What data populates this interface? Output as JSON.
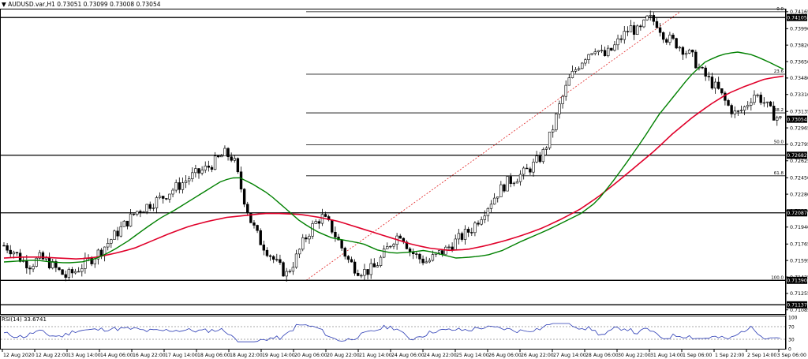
{
  "header": {
    "arrow_glyph": "▼",
    "symbol": "AUDUSD.var,H1",
    "ohlc": "0.73051 0.73099 0.73008 0.73054"
  },
  "rsi": {
    "label": "RSI(14) 33.6741",
    "period": 14,
    "value": 33.6741,
    "scale_labels": [
      "100",
      "70",
      "30",
      "0"
    ],
    "overbought": 70,
    "oversold": 30
  },
  "price_axis": {
    "min": 0.7105,
    "max": 0.7418,
    "ticks": [
      "0.74165",
      "0.73990",
      "0.73820",
      "0.73650",
      "0.73480",
      "0.73310",
      "0.73135",
      "0.72965",
      "0.72795",
      "0.72625",
      "0.72450",
      "0.72280",
      "0.72110",
      "0.71940",
      "0.71765",
      "0.71595",
      "0.71425",
      "0.71255",
      "0.71085"
    ],
    "current_price": "0.73054"
  },
  "horizontal_levels": [
    {
      "price": 0.74105,
      "label": "0.74105"
    },
    {
      "price": 0.72682,
      "label": "0.72682"
    },
    {
      "price": 0.72087,
      "label": "0.72087"
    },
    {
      "price": 0.7139,
      "label": "0.71390"
    },
    {
      "price": 0.71137,
      "label": "0.71137"
    }
  ],
  "fibonacci": {
    "levels": [
      {
        "ratio": "0.0",
        "price": 0.74165
      },
      {
        "ratio": "23.6",
        "price": 0.7352
      },
      {
        "ratio": "38.2",
        "price": 0.7312
      },
      {
        "ratio": "50.0",
        "price": 0.7279
      },
      {
        "ratio": "61.8",
        "price": 0.7247
      },
      {
        "ratio": "100.0",
        "price": 0.7139
      }
    ]
  },
  "time_axis": {
    "labels": [
      "12 Aug 2020",
      "12 Aug 22:00",
      "13 Aug 14:00",
      "14 Aug 06:00",
      "16 Aug 22:00",
      "17 Aug 14:00",
      "18 Aug 06:00",
      "18 Aug 22:00",
      "19 Aug 14:00",
      "20 Aug 06:00",
      "20 Aug 22:00",
      "21 Aug 14:00",
      "24 Aug 06:00",
      "24 Aug 22:00",
      "25 Aug 14:00",
      "26 Aug 06:00",
      "26 Aug 22:00",
      "27 Aug 14:00",
      "28 Aug 06:00",
      "30 Aug 22:00",
      "31 Aug 14:00",
      "1 Sep 06:00",
      "1 Sep 22:00",
      "2 Sep 14:00",
      "3 Sep 06:00"
    ]
  },
  "colors": {
    "background": "#ffffff",
    "candle_bull": "#ffffff",
    "candle_bear": "#000000",
    "ma_fast": "#008000",
    "ma_slow": "#e0002a",
    "rsi_line": "#2a3bb5",
    "fib_line": "#e02020",
    "level_line": "#000000"
  },
  "chart_data": {
    "type": "candlestick",
    "close_path": [
      0.7175,
      0.717,
      0.716,
      0.7155,
      0.7162,
      0.7158,
      0.715,
      0.7143,
      0.7148,
      0.7155,
      0.7162,
      0.717,
      0.718,
      0.719,
      0.72,
      0.721,
      0.7215,
      0.722,
      0.7225,
      0.7232,
      0.7238,
      0.7245,
      0.725,
      0.7255,
      0.7262,
      0.727,
      0.7265,
      0.723,
      0.72,
      0.718,
      0.7168,
      0.7155,
      0.7145,
      0.716,
      0.718,
      0.7195,
      0.7205,
      0.7195,
      0.7178,
      0.716,
      0.715,
      0.7148,
      0.7152,
      0.7165,
      0.718,
      0.7188,
      0.717,
      0.7162,
      0.7158,
      0.7165,
      0.717,
      0.7178,
      0.7185,
      0.7192,
      0.7205,
      0.7218,
      0.723,
      0.724,
      0.7245,
      0.725,
      0.7258,
      0.7268,
      0.729,
      0.732,
      0.7345,
      0.736,
      0.7372,
      0.738,
      0.737,
      0.7378,
      0.739,
      0.74,
      0.7395,
      0.741,
      0.7405,
      0.739,
      0.7385,
      0.7378,
      0.737,
      0.7355,
      0.7345,
      0.7335,
      0.732,
      0.731,
      0.7318,
      0.7332,
      0.7325,
      0.7312,
      0.7305
    ],
    "ma_fast_path": [
      0.7158,
      0.7159,
      0.716,
      0.7158,
      0.7157,
      0.7158,
      0.7162,
      0.717,
      0.718,
      0.7192,
      0.7203,
      0.7212,
      0.7222,
      0.7232,
      0.7242,
      0.7246,
      0.7238,
      0.7228,
      0.7214,
      0.72,
      0.719,
      0.7183,
      0.718,
      0.7177,
      0.717,
      0.7167,
      0.7168,
      0.717,
      0.7166,
      0.7162,
      0.7163,
      0.7165,
      0.717,
      0.7178,
      0.7185,
      0.7192,
      0.72,
      0.7208,
      0.722,
      0.724,
      0.7262,
      0.7285,
      0.731,
      0.733,
      0.735,
      0.7365,
      0.7372,
      0.7375,
      0.7372,
      0.7365,
      0.7357
    ],
    "ma_slow_path": [
      0.7162,
      0.7163,
      0.7163,
      0.7162,
      0.7161,
      0.7163,
      0.7167,
      0.7172,
      0.718,
      0.7188,
      0.7195,
      0.72,
      0.7204,
      0.7206,
      0.7208,
      0.7208,
      0.7207,
      0.7204,
      0.72,
      0.7194,
      0.7188,
      0.7182,
      0.7176,
      0.7172,
      0.717,
      0.7171,
      0.7175,
      0.718,
      0.7186,
      0.7193,
      0.7202,
      0.7212,
      0.7225,
      0.724,
      0.7256,
      0.7272,
      0.729,
      0.7306,
      0.732,
      0.7332,
      0.734,
      0.7347,
      0.735
    ]
  }
}
